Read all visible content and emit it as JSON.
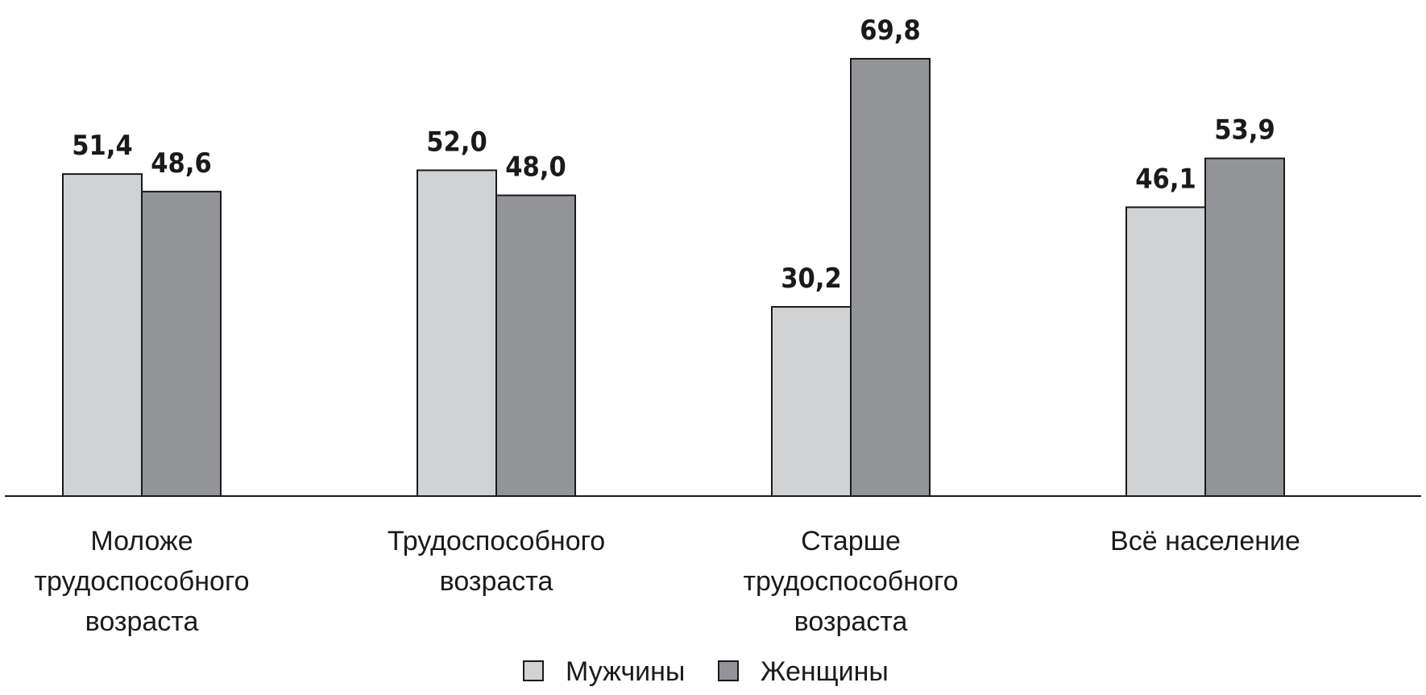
{
  "chart_data": {
    "type": "bar",
    "categories": [
      [
        "Моложе",
        "трудоспособного",
        "возраста"
      ],
      [
        "Трудоспособного",
        "возраста"
      ],
      [
        "Старше",
        "трудоспособного",
        "возраста"
      ],
      [
        "Всё население"
      ]
    ],
    "series": [
      {
        "name": "Мужчины",
        "color": "#d1d2d4",
        "values": [
          51.4,
          52.0,
          30.2,
          46.1
        ],
        "labels": [
          "51,4",
          "52,0",
          "30,2",
          "46,1"
        ]
      },
      {
        "name": "Женщины",
        "color": "#939497",
        "values": [
          48.6,
          48.0,
          69.8,
          53.9
        ],
        "labels": [
          "48,6",
          "48,0",
          "69,8",
          "53,9"
        ]
      }
    ],
    "ylim": [
      0,
      70
    ],
    "legend_position": "bottom-center",
    "grid": false,
    "title": "",
    "xlabel": "",
    "ylabel": ""
  }
}
